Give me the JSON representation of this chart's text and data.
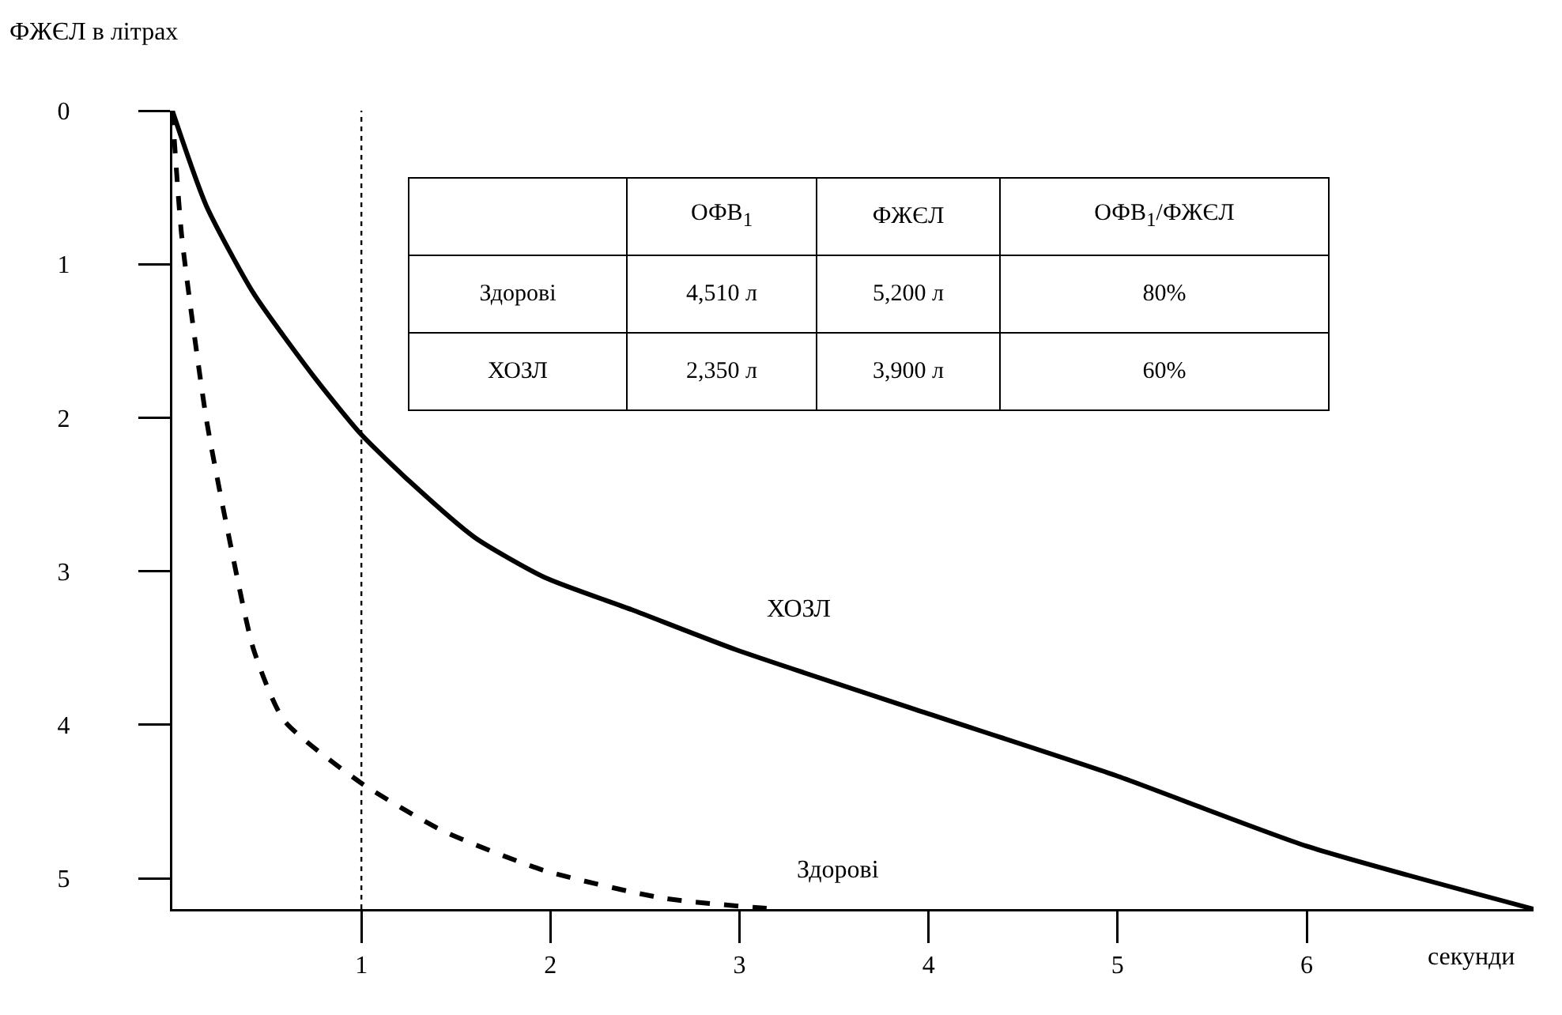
{
  "chart_data": {
    "type": "line",
    "ylabel": "ФЖЄЛ в літрах",
    "xlabel": "секунди",
    "xlim": [
      0,
      7.2
    ],
    "xticks": [
      1,
      2,
      3,
      4,
      5,
      6
    ],
    "ylim": [
      5.2,
      0
    ],
    "yticks": [
      0,
      1,
      2,
      3,
      4,
      5
    ],
    "grid": false,
    "legend": false,
    "marker": "none",
    "series": [
      {
        "name": "ХОЗЛ",
        "color": "#000000",
        "line_style": "solid",
        "x": [
          0,
          0.18,
          0.43,
          0.76,
          1,
          1.26,
          1.6,
          1.97,
          2.43,
          2.98,
          3.98,
          4.99,
          6,
          7.2
        ],
        "values": [
          0,
          0.62,
          1.19,
          1.75,
          2.11,
          2.42,
          2.78,
          3.04,
          3.25,
          3.51,
          3.92,
          4.33,
          4.79,
          5.2
        ]
      },
      {
        "name": "Здорові",
        "color": "#000000",
        "line_style": "dashed",
        "x": [
          0,
          0.05,
          0.18,
          0.3,
          0.43,
          0.59,
          1,
          1.43,
          1.97,
          2.6,
          3.19
        ],
        "values": [
          0,
          0.82,
          2.01,
          2.78,
          3.51,
          3.97,
          4.38,
          4.69,
          4.95,
          5.13,
          5.2
        ]
      }
    ],
    "ref_lines": [
      {
        "axis": "x",
        "value": 1,
        "color": "#000000",
        "line_style": "dotted"
      }
    ],
    "annotations": [
      "ОФВ$_{1}$",
      "ФЖЄЛ",
      "ОФВ$_{1}$/ФЖЄЛ",
      "Здорові",
      "4,510 л",
      "5,200 л",
      "80%",
      "ХОЗЛ",
      "2,350 л",
      "3,900 л",
      "60%"
    ]
  }
}
